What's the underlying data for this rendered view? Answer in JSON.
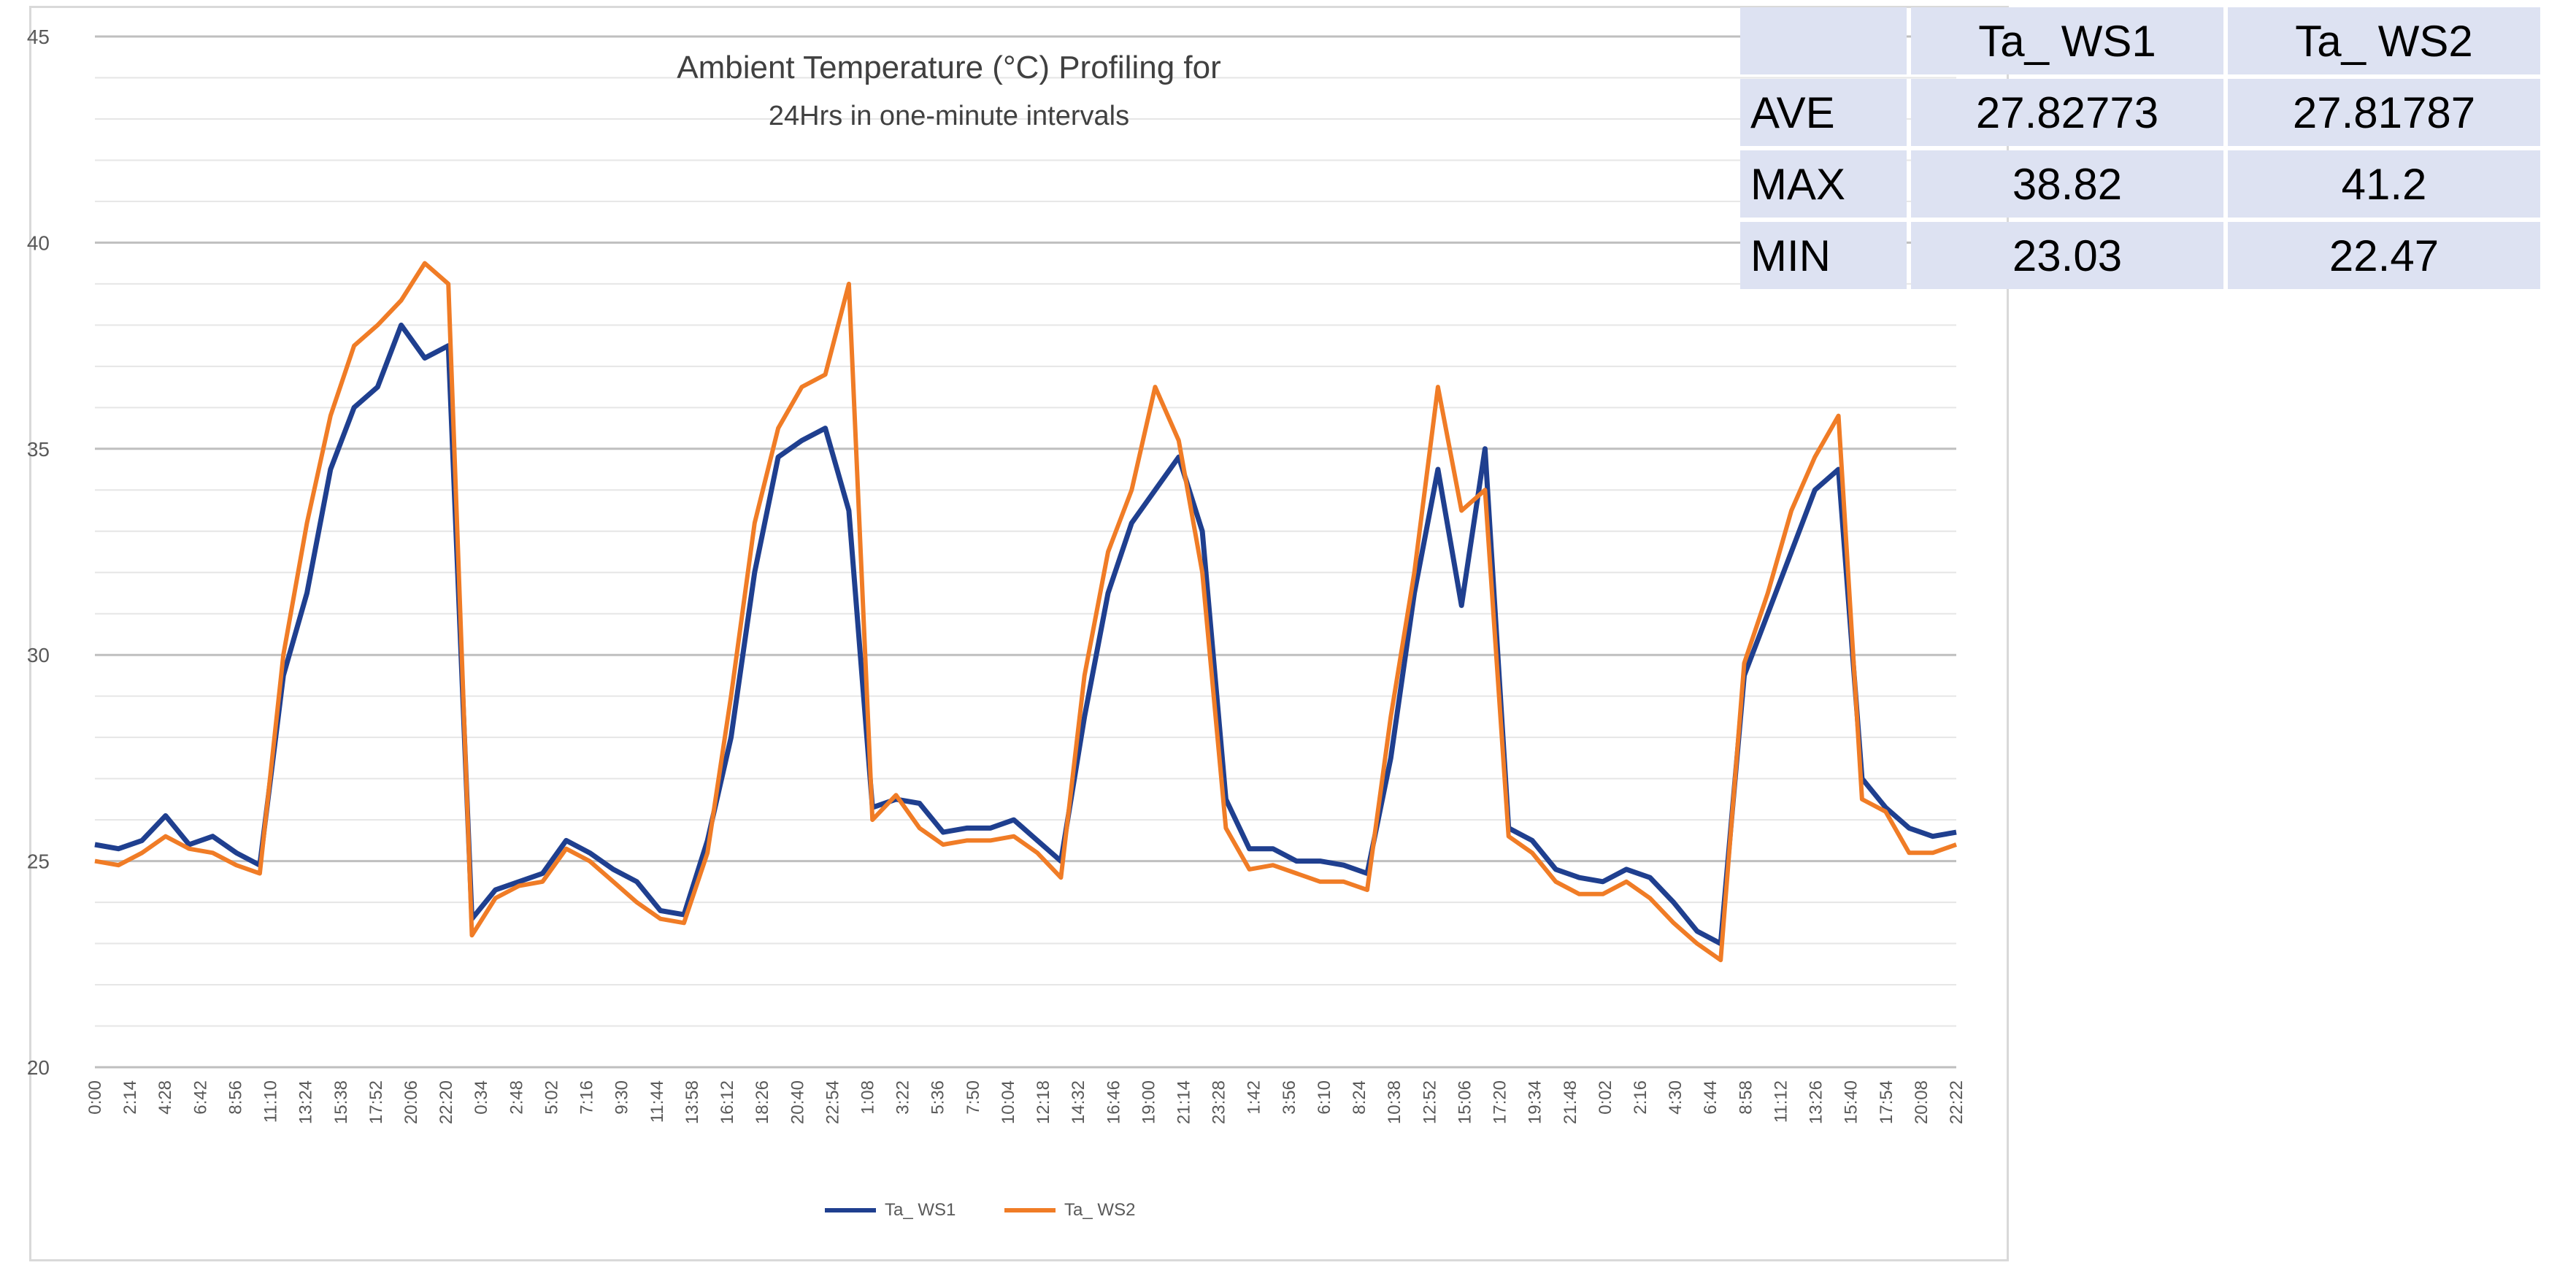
{
  "chart_data": {
    "type": "line",
    "title": "Ambient Temperature (°C) Profiling for",
    "subtitle": "24Hrs in one-minute intervals",
    "ylim": [
      20,
      45
    ],
    "yticks": [
      20,
      25,
      30,
      35,
      40,
      45
    ],
    "xticks": [
      "0:00",
      "2:14",
      "4:28",
      "6:42",
      "8:56",
      "11:10",
      "13:24",
      "15:38",
      "17:52",
      "20:06",
      "22:20",
      "0:34",
      "2:48",
      "5:02",
      "7:16",
      "9:30",
      "11:44",
      "13:58",
      "16:12",
      "18:26",
      "20:40",
      "22:54",
      "1:08",
      "3:22",
      "5:36",
      "7:50",
      "10:04",
      "12:18",
      "14:32",
      "16:46",
      "19:00",
      "21:14",
      "23:28",
      "1:42",
      "3:56",
      "6:10",
      "8:24",
      "10:38",
      "12:52",
      "15:06",
      "17:20",
      "19:34",
      "21:48",
      "0:02",
      "2:16",
      "4:30",
      "6:44",
      "8:58",
      "11:12",
      "13:26",
      "15:40",
      "17:54",
      "20:08",
      "22:22"
    ],
    "xlabel": "",
    "ylabel": "",
    "series": [
      {
        "name": "Ta_ WS1",
        "color": "#1f3f8f",
        "values": [
          25.4,
          25.3,
          25.5,
          26.1,
          25.4,
          25.6,
          25.2,
          24.9,
          29.5,
          31.5,
          34.5,
          36,
          36.5,
          38,
          37.2,
          37.5,
          23.6,
          24.3,
          24.5,
          24.7,
          25.5,
          25.2,
          24.8,
          24.5,
          23.8,
          23.7,
          25.5,
          28,
          32,
          34.8,
          35.2,
          35.5,
          33.5,
          26.3,
          26.5,
          26.4,
          25.7,
          25.8,
          25.8,
          26,
          25.5,
          25,
          28.5,
          31.5,
          33.2,
          34,
          34.8,
          33,
          26.5,
          25.3,
          25.3,
          25,
          25,
          24.9,
          24.7,
          27.5,
          31.5,
          34.5,
          31.2,
          35,
          25.8,
          25.5,
          24.8,
          24.6,
          24.5,
          24.8,
          24.6,
          24,
          23.3,
          23,
          29.5,
          31,
          32.5,
          34,
          34.5,
          27,
          26.3,
          25.8,
          25.6,
          25.7
        ]
      },
      {
        "name": "Ta_ WS2",
        "color": "#f07c26",
        "values": [
          25,
          24.9,
          25.2,
          25.6,
          25.3,
          25.2,
          24.9,
          24.7,
          30,
          33.2,
          35.8,
          37.5,
          38,
          38.6,
          39.5,
          39,
          23.2,
          24.1,
          24.4,
          24.5,
          25.3,
          25,
          24.5,
          24,
          23.6,
          23.5,
          25.2,
          29,
          33.2,
          35.5,
          36.5,
          36.8,
          39,
          26,
          26.6,
          25.8,
          25.4,
          25.5,
          25.5,
          25.6,
          25.2,
          24.6,
          29.5,
          32.5,
          34,
          36.5,
          35.2,
          32,
          25.8,
          24.8,
          24.9,
          24.7,
          24.5,
          24.5,
          24.3,
          28.5,
          32,
          36.5,
          33.5,
          34,
          25.6,
          25.2,
          24.5,
          24.2,
          24.2,
          24.5,
          24.1,
          23.5,
          23,
          22.6,
          29.8,
          31.5,
          33.5,
          34.8,
          35.8,
          26.5,
          26.2,
          25.2,
          25.2,
          25.4
        ]
      }
    ]
  },
  "table": {
    "headers": [
      "",
      "Ta_ WS1",
      "Ta_ WS2"
    ],
    "rows": [
      {
        "label": "AVE",
        "ws1": "27.82773",
        "ws2": "27.81787"
      },
      {
        "label": "MAX",
        "ws1": "38.82",
        "ws2": "41.2"
      },
      {
        "label": "MIN",
        "ws1": "23.03",
        "ws2": "22.47"
      }
    ]
  },
  "legend": [
    "Ta_ WS1",
    "Ta_ WS2"
  ]
}
